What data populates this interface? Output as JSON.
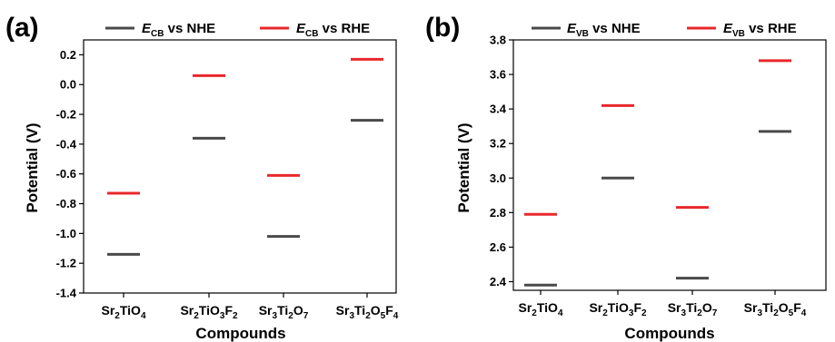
{
  "chart_data": [
    {
      "panel": "(a)",
      "type": "scatter",
      "marker": "horizontal-dash",
      "categories": [
        "Sr2TiO4",
        "Sr2TiO3F2",
        "Sr3Ti2O7",
        "Sr3Ti2O5F4"
      ],
      "category_labels": [
        [
          {
            "t": "Sr"
          },
          {
            "t": "2",
            "sub": true
          },
          {
            "t": "TiO"
          },
          {
            "t": "4",
            "sub": true
          }
        ],
        [
          {
            "t": "Sr"
          },
          {
            "t": "2",
            "sub": true
          },
          {
            "t": "TiO"
          },
          {
            "t": "3",
            "sub": true
          },
          {
            "t": "F"
          },
          {
            "t": "2",
            "sub": true
          }
        ],
        [
          {
            "t": "Sr"
          },
          {
            "t": "3",
            "sub": true
          },
          {
            "t": "Ti"
          },
          {
            "t": "2",
            "sub": true
          },
          {
            "t": "O"
          },
          {
            "t": "7",
            "sub": true
          }
        ],
        [
          {
            "t": "Sr"
          },
          {
            "t": "3",
            "sub": true
          },
          {
            "t": "Ti"
          },
          {
            "t": "2",
            "sub": true
          },
          {
            "t": "O"
          },
          {
            "t": "5",
            "sub": true
          },
          {
            "t": "F"
          },
          {
            "t": "4",
            "sub": true
          }
        ]
      ],
      "series": [
        {
          "name": "ECB vs NHE",
          "legend_main": "E",
          "legend_sub": "CB",
          "legend_rest": " vs NHE",
          "color": "#4a4a4a",
          "values": [
            -1.14,
            -0.36,
            -1.02,
            -0.24
          ]
        },
        {
          "name": "ECB vs RHE",
          "legend_main": "E",
          "legend_sub": "CB",
          "legend_rest": " vs RHE",
          "color": "#e8282b",
          "values": [
            -0.73,
            0.06,
            -0.61,
            0.17
          ]
        }
      ],
      "xlabel": "Compounds",
      "ylabel": "Potential (V)",
      "ylim": [
        -1.4,
        0.3
      ],
      "yticks": [
        -1.4,
        -1.2,
        -1.0,
        -0.8,
        -0.6,
        -0.4,
        -0.2,
        0.0,
        0.2
      ],
      "ytick_labels": [
        "-1.4",
        "-1.2",
        "-1.0",
        "-0.8",
        "-0.6",
        "-0.4",
        "-0.2",
        "0.0",
        "0.2"
      ],
      "legend_position": "top",
      "grid": false
    },
    {
      "panel": "(b)",
      "type": "scatter",
      "marker": "horizontal-dash",
      "categories": [
        "Sr2TiO4",
        "Sr2TiO3F2",
        "Sr3Ti2O7",
        "Sr3Ti2O5F4"
      ],
      "category_labels": [
        [
          {
            "t": "Sr"
          },
          {
            "t": "2",
            "sub": true
          },
          {
            "t": "TiO"
          },
          {
            "t": "4",
            "sub": true
          }
        ],
        [
          {
            "t": "Sr"
          },
          {
            "t": "2",
            "sub": true
          },
          {
            "t": "TiO"
          },
          {
            "t": "3",
            "sub": true
          },
          {
            "t": "F"
          },
          {
            "t": "2",
            "sub": true
          }
        ],
        [
          {
            "t": "Sr"
          },
          {
            "t": "3",
            "sub": true
          },
          {
            "t": "Ti"
          },
          {
            "t": "2",
            "sub": true
          },
          {
            "t": "O"
          },
          {
            "t": "7",
            "sub": true
          }
        ],
        [
          {
            "t": "Sr"
          },
          {
            "t": "3",
            "sub": true
          },
          {
            "t": "Ti"
          },
          {
            "t": "2",
            "sub": true
          },
          {
            "t": "O"
          },
          {
            "t": "5",
            "sub": true
          },
          {
            "t": "F"
          },
          {
            "t": "4",
            "sub": true
          }
        ]
      ],
      "series": [
        {
          "name": "EVB vs NHE",
          "legend_main": "E",
          "legend_sub": "VB",
          "legend_rest": " vs NHE",
          "color": "#4a4a4a",
          "values": [
            2.38,
            3.0,
            2.42,
            3.27
          ]
        },
        {
          "name": "EVB vs RHE",
          "legend_main": "E",
          "legend_sub": "VB",
          "legend_rest": " vs RHE",
          "color": "#e8282b",
          "values": [
            2.79,
            3.42,
            2.83,
            3.68
          ]
        }
      ],
      "xlabel": "Compounds",
      "ylabel": "Potential (V)",
      "ylim": [
        2.35,
        3.8
      ],
      "yticks": [
        2.4,
        2.6,
        2.8,
        3.0,
        3.2,
        3.4,
        3.6,
        3.8
      ],
      "ytick_labels": [
        "2.4",
        "2.6",
        "2.8",
        "3.0",
        "3.2",
        "3.4",
        "3.6",
        "3.8"
      ],
      "legend_position": "top",
      "grid": false
    }
  ]
}
